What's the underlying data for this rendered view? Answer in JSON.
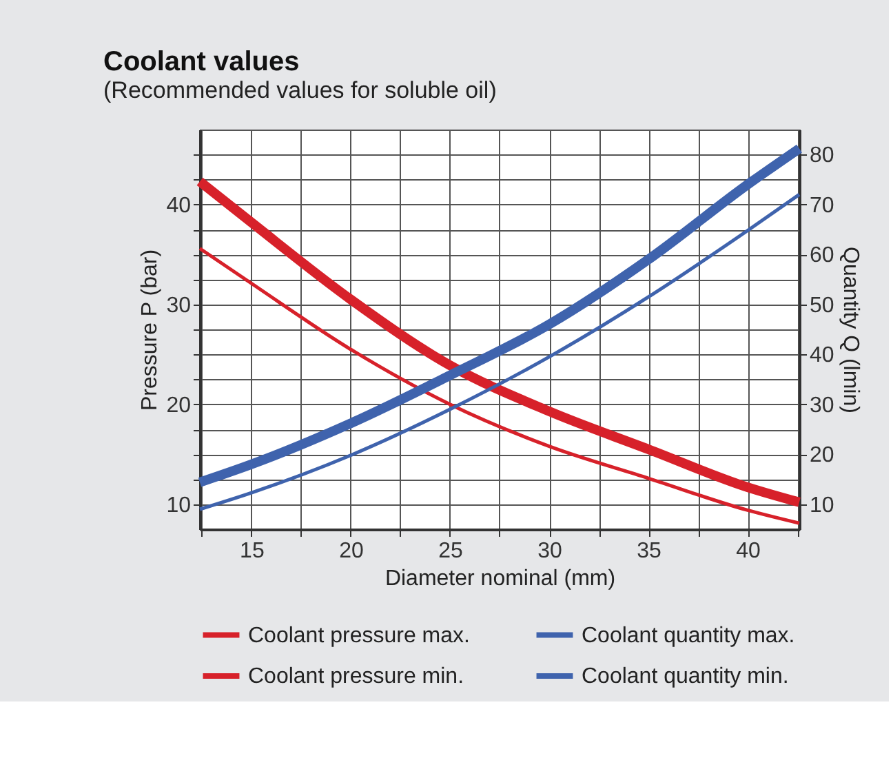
{
  "chart_data": {
    "type": "line",
    "title": "Coolant values",
    "subtitle": "(Recommended values for soluble oil)",
    "xlabel": "Diameter nominal (mm)",
    "ylabel": "Pressure P (bar)",
    "y2label": "Quantity Q (lmin)",
    "x": [
      12.4,
      15,
      20,
      25,
      30,
      35,
      40,
      42.6
    ],
    "series": [
      {
        "name": "Coolant pressure max.",
        "color": "#d7212a",
        "values": [
          42.3,
          38.2,
          30.5,
          23.9,
          19.3,
          15.5,
          11.7,
          10.2
        ]
      },
      {
        "name": "Coolant pressure min.",
        "color": "#d7212a",
        "values": [
          35.6,
          32.1,
          25.5,
          20.0,
          15.8,
          12.6,
          9.4,
          8.1
        ]
      },
      {
        "name": "Coolant quantity max.",
        "color": "#3f63ad",
        "axis": "y2",
        "values": [
          14.4,
          18,
          26.2,
          35.8,
          46,
          59,
          74,
          81.2
        ]
      },
      {
        "name": "Coolant quantity min.",
        "color": "#3f63ad",
        "axis": "y2",
        "values": [
          9,
          12.3,
          19.8,
          29,
          39.5,
          51.5,
          64.8,
          72
        ]
      }
    ],
    "xlim": [
      12.4,
      42.6
    ],
    "xticks": [
      {
        "value": 12.5,
        "label": null
      },
      15,
      {
        "value": 17.5,
        "label": null
      },
      20,
      {
        "value": 22.5,
        "label": null
      },
      25,
      {
        "value": 27.5,
        "label": null
      },
      30,
      {
        "value": 32.5,
        "label": null
      },
      35,
      {
        "value": 37.5,
        "label": null
      },
      40,
      {
        "value": 42.5,
        "label": null
      }
    ],
    "ylim": [
      7.5,
      47.5
    ],
    "yticks": [
      10,
      {
        "value": 12.5,
        "label": null
      },
      {
        "value": 15,
        "label": null
      },
      {
        "value": 17.5,
        "label": null
      },
      20,
      {
        "value": 22.5,
        "label": null
      },
      {
        "value": 25,
        "label": null
      },
      {
        "value": 27.5,
        "label": null
      },
      30,
      {
        "value": 32.5,
        "label": null
      },
      {
        "value": 35,
        "label": null
      },
      {
        "value": 37.5,
        "label": null
      },
      40,
      {
        "value": 42.5,
        "label": null
      },
      {
        "value": 45,
        "label": null
      }
    ],
    "y2lim": [
      5,
      85
    ],
    "y2ticks": [
      10,
      20,
      30,
      40,
      50,
      60,
      70,
      80
    ],
    "grid": true,
    "legend": "bottom",
    "line_style": "solid"
  }
}
